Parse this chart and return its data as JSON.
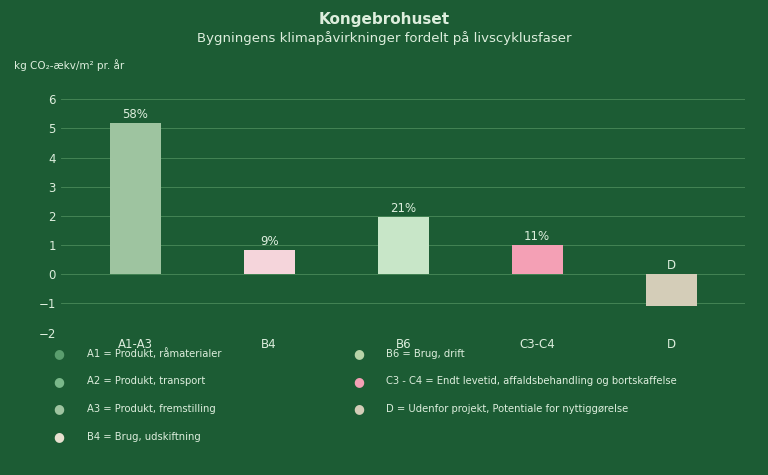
{
  "title_bold": "Kongebrohuset",
  "title_sub": "Bygningens klimapåvirkninger fordelt på livscyklusfaser",
  "ylabel": "kg CO₂-ækv/m² pr. år",
  "categories": [
    "A1-A3",
    "B4",
    "B6",
    "C3-C4",
    "D"
  ],
  "values": [
    5.2,
    0.82,
    1.95,
    1.0,
    -1.1
  ],
  "bar_colors": [
    "#9ec4a0",
    "#f5d5db",
    "#c8e6c8",
    "#f4a0b5",
    "#d4cdb8"
  ],
  "percentages": [
    "58%",
    "9%",
    "21%",
    "11%",
    "D"
  ],
  "pct_above": [
    true,
    true,
    true,
    true,
    true
  ],
  "ylim": [
    -2.0,
    6.8
  ],
  "yticks": [
    -2,
    -1,
    0,
    1,
    2,
    3,
    4,
    5,
    6
  ],
  "bg_color": "#1c5c34",
  "text_color": "#ddeedd",
  "grid_color": "#4a8a5a",
  "legend_items_left": [
    {
      "label": "A1 = Produkt, råmaterialer",
      "color": "#5a9e6e"
    },
    {
      "label": "A2 = Produkt, transport",
      "color": "#7ab88a"
    },
    {
      "label": "A3 = Produkt, fremstilling",
      "color": "#9ec4a0"
    },
    {
      "label": "B4 = Brug, udskiftning",
      "color": "#e8e0d0"
    }
  ],
  "legend_items_right": [
    {
      "label": "B6 = Brug, drift",
      "color": "#b8d4a8"
    },
    {
      "label": "C3 - C4 = Endt levetid, affaldsbehandling og bortskaffelse",
      "color": "#f4a0b5"
    },
    {
      "label": "D = Udenfor projekt, Potentiale for nyttiggørelse",
      "color": "#d4cdb8"
    }
  ]
}
